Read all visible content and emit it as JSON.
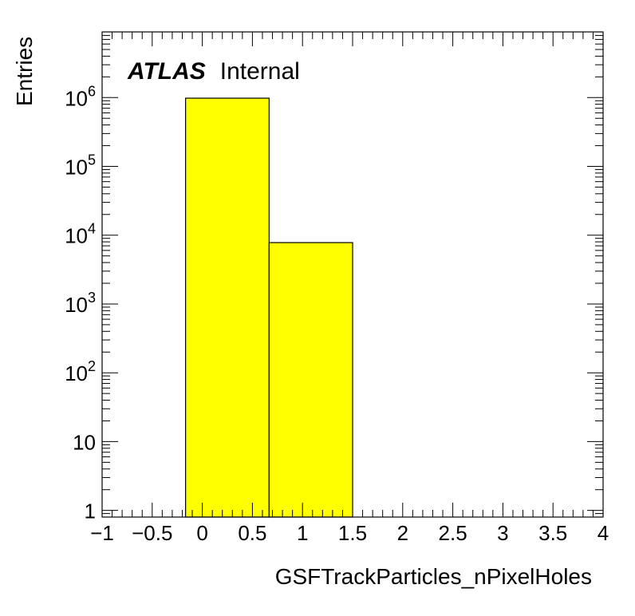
{
  "chart_data": {
    "type": "bar",
    "histogram": true,
    "bins": [
      {
        "x_low": -0.167,
        "x_high": 0.667,
        "value": 980000
      },
      {
        "x_low": 0.667,
        "x_high": 1.5,
        "value": 7800
      }
    ],
    "xlabel": "GSFTrackParticles_nPixelHoles",
    "ylabel": "Entries",
    "xlim": [
      -1,
      4
    ],
    "ylim": [
      0.8,
      9000000
    ],
    "yscale": "log",
    "x_ticks": [
      {
        "value": -1,
        "label": "−1"
      },
      {
        "value": -0.5,
        "label": "−0.5"
      },
      {
        "value": 0,
        "label": "0"
      },
      {
        "value": 0.5,
        "label": "0.5"
      },
      {
        "value": 1,
        "label": "1"
      },
      {
        "value": 1.5,
        "label": "1.5"
      },
      {
        "value": 2,
        "label": "2"
      },
      {
        "value": 2.5,
        "label": "2.5"
      },
      {
        "value": 3,
        "label": "3"
      },
      {
        "value": 3.5,
        "label": "3.5"
      },
      {
        "value": 4,
        "label": "4"
      }
    ],
    "y_ticks": [
      {
        "value": 1,
        "base": "1",
        "exp": ""
      },
      {
        "value": 10,
        "base": "10",
        "exp": ""
      },
      {
        "value": 100,
        "base": "10",
        "exp": "2"
      },
      {
        "value": 1000,
        "base": "10",
        "exp": "3"
      },
      {
        "value": 10000,
        "base": "10",
        "exp": "4"
      },
      {
        "value": 100000,
        "base": "10",
        "exp": "5"
      },
      {
        "value": 1000000,
        "base": "10",
        "exp": "6"
      }
    ],
    "annotation": {
      "bold": "ATLAS",
      "normal": "Internal"
    },
    "grid": false,
    "colors": {
      "fill": "#ffff00",
      "line": "#000000"
    }
  }
}
